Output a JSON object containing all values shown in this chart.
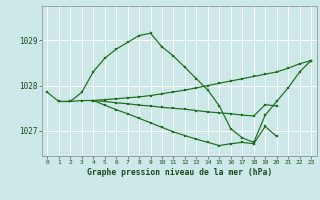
{
  "bg_color": "#cce8e8",
  "grid_color": "#b8d8d8",
  "line_color": "#1a6e1a",
  "xlabel": "Graphe pression niveau de la mer (hPa)",
  "yticks": [
    1027,
    1028,
    1029
  ],
  "ylim": [
    1026.45,
    1029.75
  ],
  "xlim": [
    -0.5,
    23.5
  ],
  "lines": [
    {
      "x": [
        0,
        1,
        2,
        3,
        4,
        5,
        6,
        7,
        8,
        9,
        10,
        11,
        12,
        13,
        14,
        15,
        16,
        17,
        18,
        19,
        20,
        21,
        22,
        23
      ],
      "y": [
        1027.85,
        1027.65,
        1027.65,
        1027.85,
        1028.3,
        1028.6,
        1028.8,
        1028.95,
        1029.1,
        1029.15,
        1028.85,
        1028.65,
        1028.4,
        1028.15,
        1027.9,
        1027.55,
        1027.05,
        1026.85,
        1026.75,
        1027.35,
        1027.65,
        1027.95,
        1028.3,
        1028.55
      ]
    },
    {
      "x": [
        1,
        2,
        3,
        4,
        5,
        6,
        7,
        8,
        9,
        10,
        11,
        12,
        13,
        14,
        15,
        16,
        17,
        18,
        19,
        20,
        21,
        22,
        23
      ],
      "y": [
        1027.65,
        1027.65,
        1027.67,
        1027.67,
        1027.69,
        1027.71,
        1027.73,
        1027.75,
        1027.78,
        1027.82,
        1027.86,
        1027.9,
        1027.95,
        1028.0,
        1028.05,
        1028.1,
        1028.15,
        1028.2,
        1028.25,
        1028.3,
        1028.38,
        1028.48,
        1028.55
      ]
    },
    {
      "x": [
        4,
        5,
        6,
        7,
        8,
        9,
        10,
        11,
        12,
        13,
        14,
        15,
        16,
        17,
        18,
        19,
        20
      ],
      "y": [
        1027.67,
        1027.65,
        1027.62,
        1027.6,
        1027.57,
        1027.55,
        1027.52,
        1027.5,
        1027.48,
        1027.45,
        1027.42,
        1027.4,
        1027.38,
        1027.35,
        1027.33,
        1027.58,
        1027.55
      ]
    },
    {
      "x": [
        4,
        5,
        6,
        7,
        8,
        9,
        10,
        11,
        12,
        13,
        14,
        15,
        16,
        17,
        18,
        19,
        20
      ],
      "y": [
        1027.67,
        1027.57,
        1027.47,
        1027.38,
        1027.28,
        1027.18,
        1027.08,
        1026.98,
        1026.9,
        1026.82,
        1026.75,
        1026.68,
        1026.72,
        1026.75,
        1026.72,
        1027.1,
        1026.88
      ]
    }
  ]
}
